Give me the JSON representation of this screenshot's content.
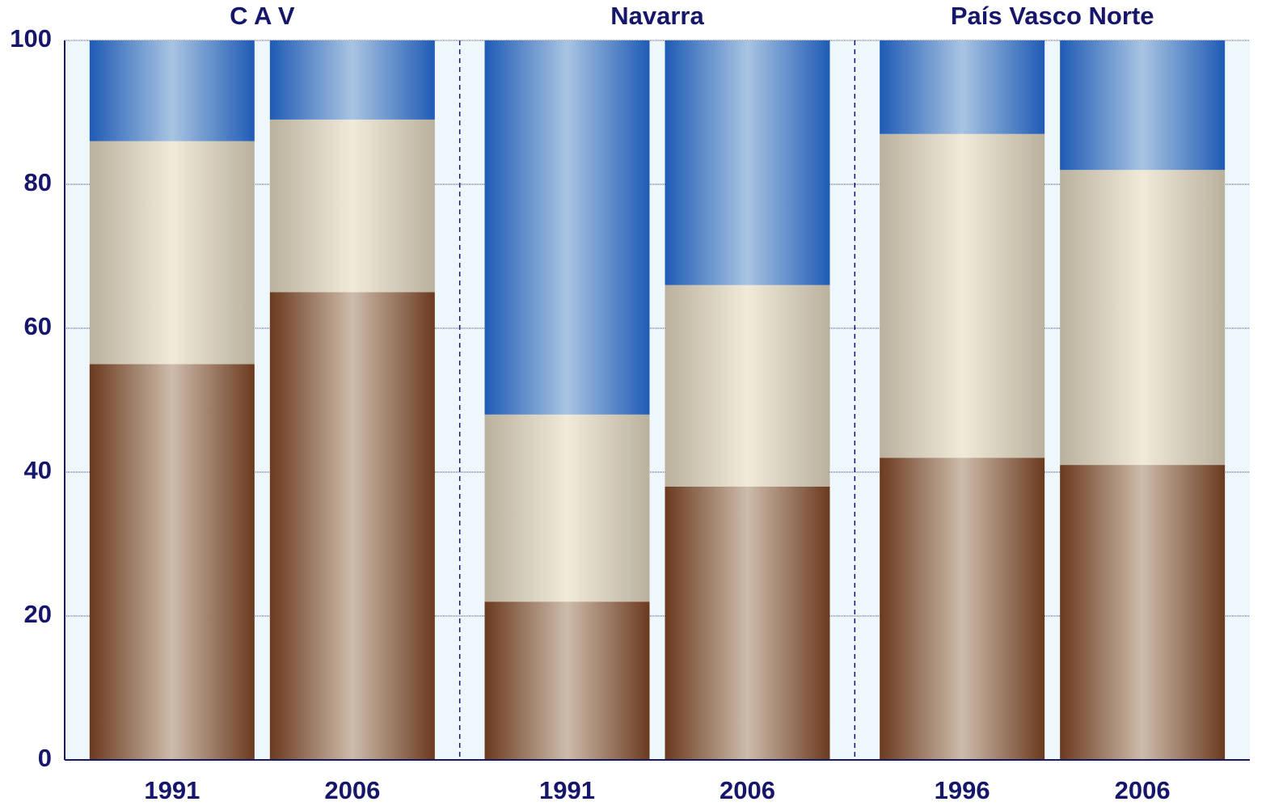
{
  "chart_data": {
    "type": "stacked_bar",
    "groups": [
      "C A V",
      "Navarra",
      "País Vasco Norte"
    ],
    "categories": [
      "1991",
      "2006",
      "1991",
      "2006",
      "1996",
      "2006"
    ],
    "series": [
      {
        "colors": [
          "#6b3a1e",
          "#cdbcab"
        ],
        "values": [
          55,
          65,
          22,
          38,
          42,
          41
        ]
      },
      {
        "colors": [
          "#b9b09e",
          "#f2ead8"
        ],
        "values": [
          31,
          24,
          26,
          28,
          45,
          41
        ]
      },
      {
        "colors": [
          "#1f5bb5",
          "#a8c4e2"
        ],
        "values": [
          14,
          11,
          52,
          34,
          13,
          18
        ]
      }
    ],
    "ylim": [
      0,
      100
    ],
    "yticks": [
      0,
      20,
      40,
      60,
      80,
      100
    ],
    "grid": true
  }
}
